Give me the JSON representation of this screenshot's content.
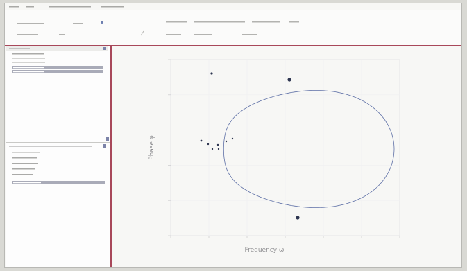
{
  "chart_data": {
    "type": "scatter",
    "title": "",
    "xlabel": "Frequency ω",
    "ylabel": "Phase φ",
    "grid": true
  }
}
